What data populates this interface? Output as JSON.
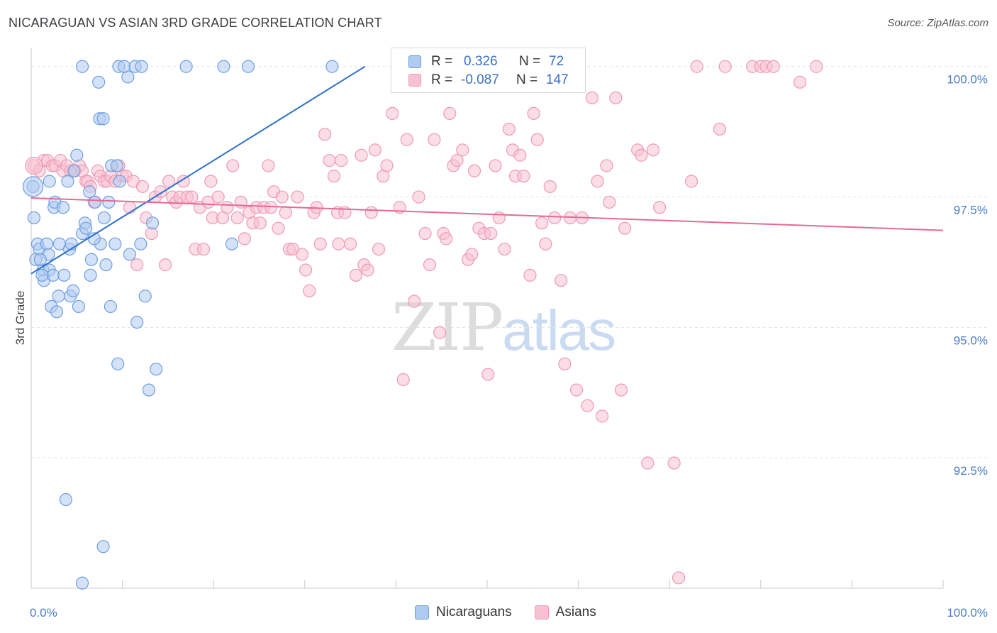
{
  "title": "NICARAGUAN VS ASIAN 3RD GRADE CORRELATION CHART",
  "source": "Source: ZipAtlas.com",
  "watermark": {
    "part1": "ZIP",
    "part2": "atlas"
  },
  "legend": {
    "rows": [
      {
        "r_label": "R =",
        "r_value": "0.326",
        "n_label": "N =",
        "n_value": "72"
      },
      {
        "r_label": "R =",
        "r_value": "-0.087",
        "n_label": "N =",
        "n_value": "147"
      }
    ]
  },
  "bottom_legend": [
    "Nicaraguans",
    "Asians"
  ],
  "colors": {
    "blue_fill": "#aecbf0",
    "blue_stroke": "#6f9ee0",
    "blue_line": "#2f6fd0",
    "pink_fill": "#f7c1d2",
    "pink_stroke": "#ee9ab5",
    "pink_line": "#e46a94",
    "grid": "#e3e3e3",
    "tick_text": "#4a7cc9"
  },
  "chart_data": {
    "type": "scatter",
    "title": "NICARAGUAN VS ASIAN 3RD GRADE CORRELATION CHART",
    "xlabel": "",
    "ylabel": "3rd Grade",
    "xlim": [
      0,
      100
    ],
    "ylim": [
      90.0,
      100.35
    ],
    "x_ticks": [
      0,
      100
    ],
    "x_tick_labels": [
      "0.0%",
      "100.0%"
    ],
    "y_ticks": [
      92.5,
      95.0,
      97.5,
      100.0
    ],
    "y_tick_labels": [
      "92.5%",
      "95.0%",
      "97.5%",
      "100.0%"
    ],
    "series": [
      {
        "name": "Nicaraguans",
        "color": "blue",
        "r": 0.326,
        "n": 72,
        "trend": {
          "x0": 0,
          "y0": 96.03,
          "x1": 36.6,
          "y1": 100.0
        },
        "points": [
          [
            0.2,
            97.7
          ],
          [
            0.3,
            97.1
          ],
          [
            0.5,
            96.3
          ],
          [
            0.7,
            96.6
          ],
          [
            0.9,
            96.5
          ],
          [
            1.3,
            96.1
          ],
          [
            1.4,
            95.9
          ],
          [
            1.7,
            96.6
          ],
          [
            1.9,
            96.4
          ],
          [
            2.0,
            96.1
          ],
          [
            2.2,
            95.4
          ],
          [
            2.4,
            96.0
          ],
          [
            2.5,
            97.3
          ],
          [
            2.6,
            97.4
          ],
          [
            2.8,
            95.3
          ],
          [
            3.0,
            95.6
          ],
          [
            3.1,
            96.6
          ],
          [
            3.5,
            97.3
          ],
          [
            3.6,
            96.0
          ],
          [
            4.0,
            97.8
          ],
          [
            4.2,
            96.5
          ],
          [
            4.3,
            95.6
          ],
          [
            4.4,
            96.6
          ],
          [
            4.6,
            95.7
          ],
          [
            4.7,
            98.0
          ],
          [
            5.0,
            98.3
          ],
          [
            5.2,
            95.4
          ],
          [
            5.6,
            96.8
          ],
          [
            5.9,
            97.0
          ],
          [
            6.0,
            96.9
          ],
          [
            6.4,
            97.6
          ],
          [
            6.5,
            96.0
          ],
          [
            6.6,
            96.3
          ],
          [
            7.0,
            97.4
          ],
          [
            7.4,
            99.7
          ],
          [
            7.5,
            99.0
          ],
          [
            7.6,
            96.6
          ],
          [
            7.9,
            99.0
          ],
          [
            8.0,
            97.1
          ],
          [
            8.2,
            96.2
          ],
          [
            8.5,
            97.4
          ],
          [
            8.7,
            95.4
          ],
          [
            8.8,
            98.1
          ],
          [
            9.2,
            96.6
          ],
          [
            9.4,
            98.1
          ],
          [
            9.5,
            94.3
          ],
          [
            9.7,
            97.8
          ],
          [
            10.6,
            99.8
          ],
          [
            10.8,
            96.4
          ],
          [
            11.6,
            95.1
          ],
          [
            12.0,
            96.6
          ],
          [
            12.5,
            95.6
          ],
          [
            12.9,
            93.8
          ],
          [
            13.3,
            97.0
          ],
          [
            13.7,
            94.2
          ],
          [
            5.6,
            100.0
          ],
          [
            9.6,
            100.0
          ],
          [
            10.2,
            100.0
          ],
          [
            11.4,
            100.0
          ],
          [
            12.1,
            100.0
          ],
          [
            17.0,
            100.0
          ],
          [
            21.1,
            100.0
          ],
          [
            22.0,
            96.6
          ],
          [
            23.8,
            100.0
          ],
          [
            33.0,
            100.0
          ],
          [
            3.8,
            91.7
          ],
          [
            7.9,
            90.8
          ],
          [
            5.6,
            90.1
          ],
          [
            1.2,
            96.0
          ],
          [
            2.0,
            97.8
          ],
          [
            1.0,
            96.3
          ],
          [
            6.9,
            96.7
          ]
        ]
      },
      {
        "name": "Asians",
        "color": "pink",
        "r": -0.087,
        "n": 147,
        "trend": {
          "x0": 0,
          "y0": 97.48,
          "x1": 100,
          "y1": 96.86
        },
        "points": [
          [
            0.3,
            98.1
          ],
          [
            0.9,
            98.0
          ],
          [
            1.4,
            98.2
          ],
          [
            1.8,
            98.2
          ],
          [
            2.3,
            98.1
          ],
          [
            2.6,
            98.1
          ],
          [
            3.2,
            98.2
          ],
          [
            3.5,
            98.0
          ],
          [
            3.9,
            98.1
          ],
          [
            4.3,
            98.0
          ],
          [
            4.8,
            98.0
          ],
          [
            5.3,
            98.1
          ],
          [
            5.6,
            98.0
          ],
          [
            6.0,
            97.8
          ],
          [
            6.2,
            97.8
          ],
          [
            6.5,
            97.7
          ],
          [
            6.9,
            97.4
          ],
          [
            7.3,
            98.0
          ],
          [
            7.6,
            97.9
          ],
          [
            8.0,
            97.8
          ],
          [
            8.3,
            97.8
          ],
          [
            8.7,
            97.9
          ],
          [
            9.2,
            97.8
          ],
          [
            9.6,
            98.1
          ],
          [
            10.0,
            97.9
          ],
          [
            10.4,
            97.9
          ],
          [
            10.8,
            97.3
          ],
          [
            11.2,
            97.8
          ],
          [
            11.6,
            96.2
          ],
          [
            12.2,
            97.7
          ],
          [
            12.6,
            97.1
          ],
          [
            13.2,
            96.8
          ],
          [
            13.6,
            97.5
          ],
          [
            14.2,
            97.6
          ],
          [
            14.7,
            96.2
          ],
          [
            15.1,
            97.8
          ],
          [
            15.5,
            97.5
          ],
          [
            15.9,
            97.4
          ],
          [
            16.3,
            97.5
          ],
          [
            16.7,
            97.8
          ],
          [
            17.1,
            97.5
          ],
          [
            17.6,
            97.5
          ],
          [
            18.0,
            96.5
          ],
          [
            18.5,
            97.3
          ],
          [
            18.9,
            96.5
          ],
          [
            19.4,
            97.4
          ],
          [
            19.7,
            97.8
          ],
          [
            19.9,
            97.1
          ],
          [
            20.5,
            97.5
          ],
          [
            21.0,
            97.1
          ],
          [
            21.5,
            97.3
          ],
          [
            22.1,
            98.1
          ],
          [
            22.6,
            97.1
          ],
          [
            23.0,
            97.4
          ],
          [
            23.4,
            96.7
          ],
          [
            23.9,
            97.2
          ],
          [
            24.3,
            97.0
          ],
          [
            24.7,
            97.3
          ],
          [
            25.1,
            97.0
          ],
          [
            25.5,
            97.3
          ],
          [
            26.0,
            98.1
          ],
          [
            26.3,
            97.3
          ],
          [
            26.6,
            97.6
          ],
          [
            27.1,
            96.9
          ],
          [
            27.5,
            97.5
          ],
          [
            27.9,
            97.2
          ],
          [
            28.3,
            96.5
          ],
          [
            28.7,
            96.5
          ],
          [
            29.2,
            97.5
          ],
          [
            29.7,
            96.4
          ],
          [
            30.1,
            96.1
          ],
          [
            30.5,
            95.7
          ],
          [
            31.0,
            97.2
          ],
          [
            31.3,
            97.3
          ],
          [
            31.7,
            96.6
          ],
          [
            32.2,
            98.7
          ],
          [
            32.7,
            98.2
          ],
          [
            33.2,
            97.9
          ],
          [
            33.6,
            97.2
          ],
          [
            34.0,
            98.2
          ],
          [
            34.4,
            97.2
          ],
          [
            35.0,
            96.6
          ],
          [
            35.6,
            96.0
          ],
          [
            36.2,
            98.3
          ],
          [
            36.5,
            96.2
          ],
          [
            36.9,
            96.1
          ],
          [
            37.3,
            97.2
          ],
          [
            37.7,
            98.4
          ],
          [
            38.1,
            96.5
          ],
          [
            38.6,
            97.9
          ],
          [
            39.0,
            98.1
          ],
          [
            39.6,
            99.1
          ],
          [
            40.4,
            97.3
          ],
          [
            40.8,
            94.0
          ],
          [
            41.2,
            98.6
          ],
          [
            42.0,
            95.5
          ],
          [
            42.5,
            97.5
          ],
          [
            43.2,
            96.8
          ],
          [
            43.7,
            96.2
          ],
          [
            44.2,
            98.6
          ],
          [
            44.8,
            94.9
          ],
          [
            45.2,
            96.8
          ],
          [
            45.5,
            96.7
          ],
          [
            45.9,
            99.1
          ],
          [
            46.3,
            98.1
          ],
          [
            46.7,
            98.2
          ],
          [
            47.3,
            98.4
          ],
          [
            47.9,
            96.3
          ],
          [
            48.3,
            96.4
          ],
          [
            48.6,
            98.0
          ],
          [
            49.1,
            96.9
          ],
          [
            49.7,
            96.8
          ],
          [
            50.1,
            94.1
          ],
          [
            50.4,
            96.8
          ],
          [
            50.9,
            98.1
          ],
          [
            51.3,
            97.1
          ],
          [
            51.9,
            96.5
          ],
          [
            52.4,
            98.8
          ],
          [
            52.8,
            98.4
          ],
          [
            53.1,
            97.9
          ],
          [
            53.6,
            98.3
          ],
          [
            54.0,
            97.9
          ],
          [
            54.7,
            96.0
          ],
          [
            55.1,
            99.1
          ],
          [
            55.5,
            98.6
          ],
          [
            56.0,
            97.0
          ],
          [
            56.4,
            96.6
          ],
          [
            56.9,
            97.7
          ],
          [
            57.4,
            97.1
          ],
          [
            58.1,
            95.9
          ],
          [
            58.5,
            94.3
          ],
          [
            59.1,
            97.1
          ],
          [
            59.8,
            93.8
          ],
          [
            60.4,
            97.1
          ],
          [
            61.0,
            93.5
          ],
          [
            61.5,
            99.4
          ],
          [
            62.1,
            97.8
          ],
          [
            62.6,
            93.3
          ],
          [
            63.1,
            98.1
          ],
          [
            63.4,
            97.4
          ],
          [
            64.1,
            99.4
          ],
          [
            64.7,
            93.8
          ],
          [
            65.1,
            96.9
          ],
          [
            66.5,
            98.4
          ],
          [
            66.9,
            98.3
          ],
          [
            67.6,
            92.4
          ],
          [
            68.2,
            98.4
          ],
          [
            68.9,
            97.3
          ],
          [
            70.5,
            92.4
          ],
          [
            72.4,
            97.8
          ],
          [
            75.5,
            98.8
          ],
          [
            76.1,
            100.0
          ],
          [
            73.0,
            100.0
          ],
          [
            79.1,
            100.0
          ],
          [
            80.0,
            100.0
          ],
          [
            80.6,
            100.0
          ],
          [
            81.4,
            100.0
          ],
          [
            84.3,
            99.7
          ],
          [
            86.1,
            100.0
          ],
          [
            71.0,
            90.2
          ],
          [
            33.7,
            96.6
          ]
        ]
      }
    ]
  }
}
